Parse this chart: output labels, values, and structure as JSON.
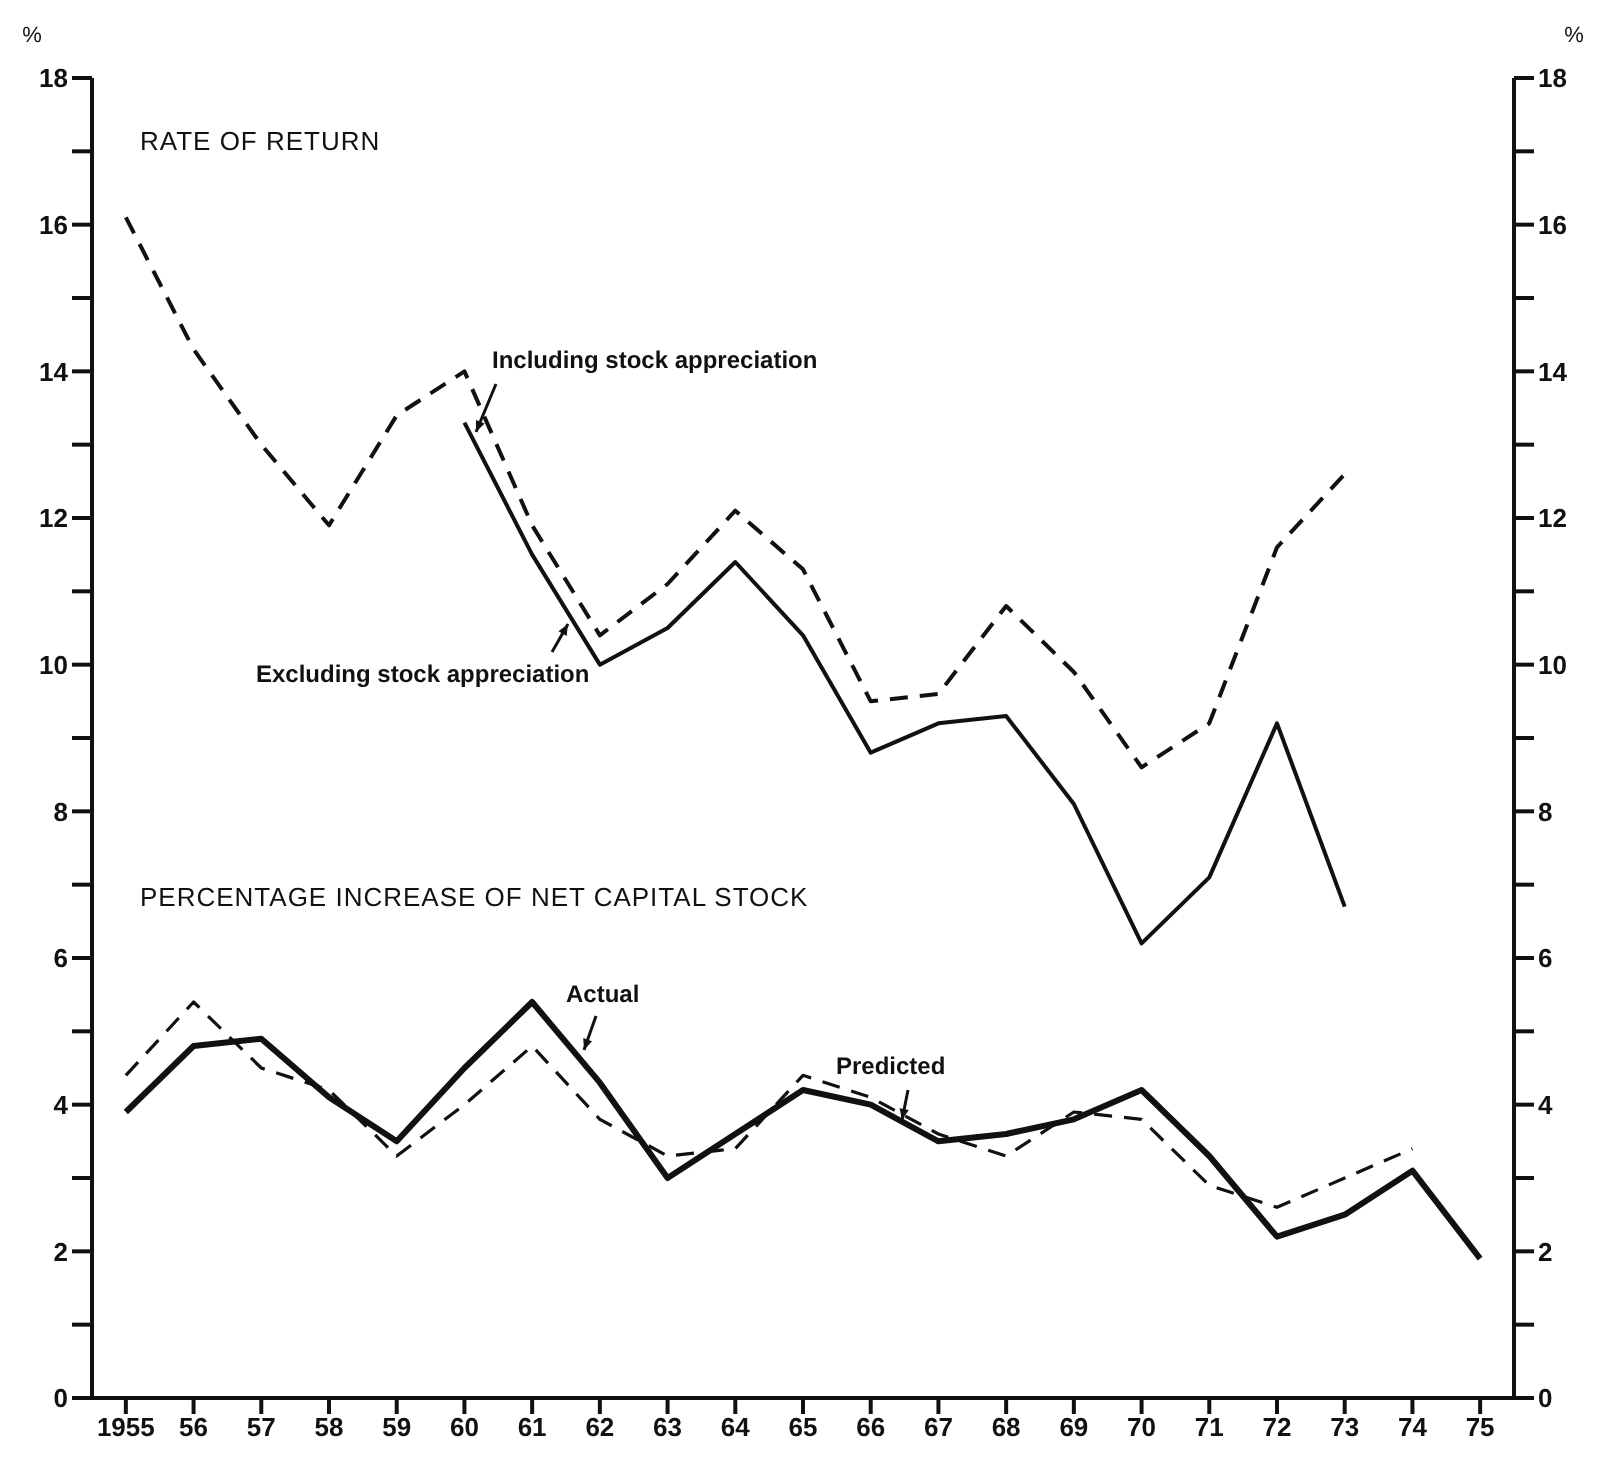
{
  "chart_data": {
    "type": "line",
    "ylabel": "%",
    "y2label": "%",
    "annotations": [
      "RATE OF RETURN",
      "PERCENTAGE INCREASE OF NET CAPITAL STOCK"
    ],
    "categories": [
      "1955",
      "56",
      "57",
      "58",
      "59",
      "60",
      "61",
      "62",
      "63",
      "64",
      "65",
      "66",
      "67",
      "68",
      "69",
      "70",
      "71",
      "72",
      "73",
      "74",
      "75"
    ],
    "series": [
      {
        "name": "Including stock appreciation",
        "color": "#111111",
        "line_style": "dashed",
        "values": [
          16.1,
          14.3,
          13.0,
          11.9,
          13.4,
          14.0,
          11.9,
          10.4,
          11.1,
          12.1,
          11.3,
          9.5,
          9.6,
          10.8,
          9.9,
          8.6,
          9.2,
          11.6,
          12.6,
          null,
          null
        ]
      },
      {
        "name": "Excluding stock appreciation",
        "color": "#111111",
        "line_style": "solid",
        "values": [
          null,
          null,
          null,
          null,
          null,
          13.3,
          11.5,
          10.0,
          10.5,
          11.4,
          10.4,
          8.8,
          9.2,
          9.3,
          8.1,
          6.2,
          7.1,
          9.2,
          6.7,
          null,
          null
        ]
      },
      {
        "name": "Actual",
        "color": "#111111",
        "line_style": "solid",
        "values": [
          3.9,
          4.8,
          4.9,
          4.1,
          3.5,
          4.5,
          5.4,
          4.3,
          3.0,
          3.6,
          4.2,
          4.0,
          3.5,
          3.6,
          3.8,
          4.2,
          3.3,
          2.2,
          2.5,
          3.1,
          1.9
        ]
      },
      {
        "name": "Predicted",
        "color": "#111111",
        "line_style": "dashed",
        "values": [
          4.4,
          5.4,
          4.5,
          4.2,
          3.3,
          4.0,
          4.8,
          3.8,
          3.3,
          3.4,
          4.4,
          4.1,
          3.6,
          3.3,
          3.9,
          3.8,
          2.9,
          2.6,
          3.0,
          3.4,
          null
        ]
      }
    ],
    "ylim": [
      0,
      18
    ],
    "yticks": [
      0,
      {
        "value": 1,
        "label": null
      },
      2,
      {
        "value": 3,
        "label": null
      },
      4,
      {
        "value": 5,
        "label": null
      },
      6,
      {
        "value": 7,
        "label": null
      },
      8,
      {
        "value": 9,
        "label": null
      },
      10,
      {
        "value": 11,
        "label": null
      },
      12,
      {
        "value": 13,
        "label": null
      },
      14,
      {
        "value": 15,
        "label": null
      },
      16,
      {
        "value": 17,
        "label": null
      },
      18
    ],
    "y2lim": [
      0,
      18
    ],
    "y2ticks": [
      0,
      {
        "value": 1,
        "label": null
      },
      2,
      {
        "value": 3,
        "label": null
      },
      4,
      {
        "value": 5,
        "label": null
      },
      6,
      {
        "value": 7,
        "label": null
      },
      8,
      {
        "value": 9,
        "label": null
      },
      10,
      {
        "value": 11,
        "label": null
      },
      12,
      {
        "value": 13,
        "label": null
      },
      14,
      {
        "value": 15,
        "label": null
      },
      16,
      {
        "value": 17,
        "label": null
      },
      18
    ],
    "marker": "none"
  }
}
